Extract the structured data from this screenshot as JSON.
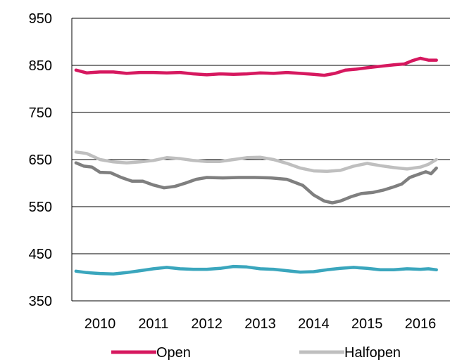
{
  "chart_data": {
    "type": "line",
    "ylim": [
      350,
      950
    ],
    "yticks": [
      350,
      450,
      550,
      650,
      750,
      850,
      950
    ],
    "xlim": [
      2009.55,
      2016.4
    ],
    "xticks": [
      2010,
      2011,
      2012,
      2013,
      2014,
      2015,
      2016
    ],
    "grid": "horizontal",
    "legend_position": "bottom",
    "legend": [
      "Open",
      "Halfopen"
    ],
    "series": [
      {
        "name": "Open",
        "color": "#d6185f",
        "x": [
          2009.55,
          2009.75,
          2010.0,
          2010.25,
          2010.5,
          2010.75,
          2011.0,
          2011.25,
          2011.5,
          2011.75,
          2012.0,
          2012.25,
          2012.5,
          2012.75,
          2013.0,
          2013.25,
          2013.5,
          2013.75,
          2014.0,
          2014.2,
          2014.4,
          2014.6,
          2014.8,
          2015.0,
          2015.25,
          2015.5,
          2015.7,
          2015.85,
          2016.0,
          2016.15,
          2016.3
        ],
        "values": [
          840,
          834,
          836,
          836,
          833,
          835,
          835,
          834,
          835,
          832,
          830,
          832,
          831,
          832,
          834,
          833,
          835,
          833,
          831,
          829,
          833,
          840,
          842,
          845,
          848,
          851,
          853,
          860,
          865,
          861,
          861
        ]
      },
      {
        "name": "",
        "color": "#7f7f7f",
        "x": [
          2009.55,
          2009.7,
          2009.85,
          2010.0,
          2010.2,
          2010.4,
          2010.6,
          2010.8,
          2011.0,
          2011.2,
          2011.4,
          2011.6,
          2011.8,
          2012.0,
          2012.3,
          2012.6,
          2012.9,
          2013.2,
          2013.5,
          2013.8,
          2014.0,
          2014.2,
          2014.35,
          2014.5,
          2014.7,
          2014.9,
          2015.1,
          2015.3,
          2015.5,
          2015.65,
          2015.8,
          2015.95,
          2016.1,
          2016.2,
          2016.3
        ],
        "values": [
          643,
          636,
          634,
          623,
          622,
          612,
          604,
          604,
          596,
          590,
          593,
          600,
          608,
          612,
          611,
          612,
          612,
          611,
          608,
          595,
          575,
          562,
          558,
          562,
          571,
          578,
          580,
          585,
          592,
          598,
          612,
          618,
          624,
          620,
          632
        ]
      },
      {
        "name": "Halfopen",
        "color": "#bfbfbf",
        "x": [
          2009.55,
          2009.75,
          2010.0,
          2010.25,
          2010.5,
          2010.75,
          2011.0,
          2011.25,
          2011.5,
          2011.75,
          2012.0,
          2012.25,
          2012.5,
          2012.75,
          2013.0,
          2013.25,
          2013.5,
          2013.75,
          2014.0,
          2014.25,
          2014.5,
          2014.75,
          2015.0,
          2015.25,
          2015.5,
          2015.75,
          2016.0,
          2016.15,
          2016.3
        ],
        "values": [
          666,
          663,
          650,
          645,
          643,
          645,
          648,
          654,
          652,
          648,
          646,
          646,
          650,
          654,
          655,
          650,
          642,
          632,
          626,
          625,
          627,
          636,
          642,
          637,
          633,
          630,
          634,
          640,
          650
        ]
      },
      {
        "name": "",
        "color": "#3aa6bd",
        "x": [
          2009.55,
          2009.75,
          2010.0,
          2010.25,
          2010.5,
          2010.75,
          2011.0,
          2011.25,
          2011.5,
          2011.75,
          2012.0,
          2012.25,
          2012.5,
          2012.75,
          2013.0,
          2013.25,
          2013.5,
          2013.75,
          2014.0,
          2014.25,
          2014.5,
          2014.75,
          2015.0,
          2015.25,
          2015.5,
          2015.75,
          2016.0,
          2016.15,
          2016.3
        ],
        "values": [
          413,
          410,
          408,
          407,
          410,
          414,
          418,
          421,
          418,
          417,
          417,
          419,
          423,
          422,
          418,
          417,
          414,
          411,
          412,
          416,
          419,
          421,
          419,
          416,
          416,
          418,
          417,
          418,
          416
        ]
      }
    ]
  }
}
